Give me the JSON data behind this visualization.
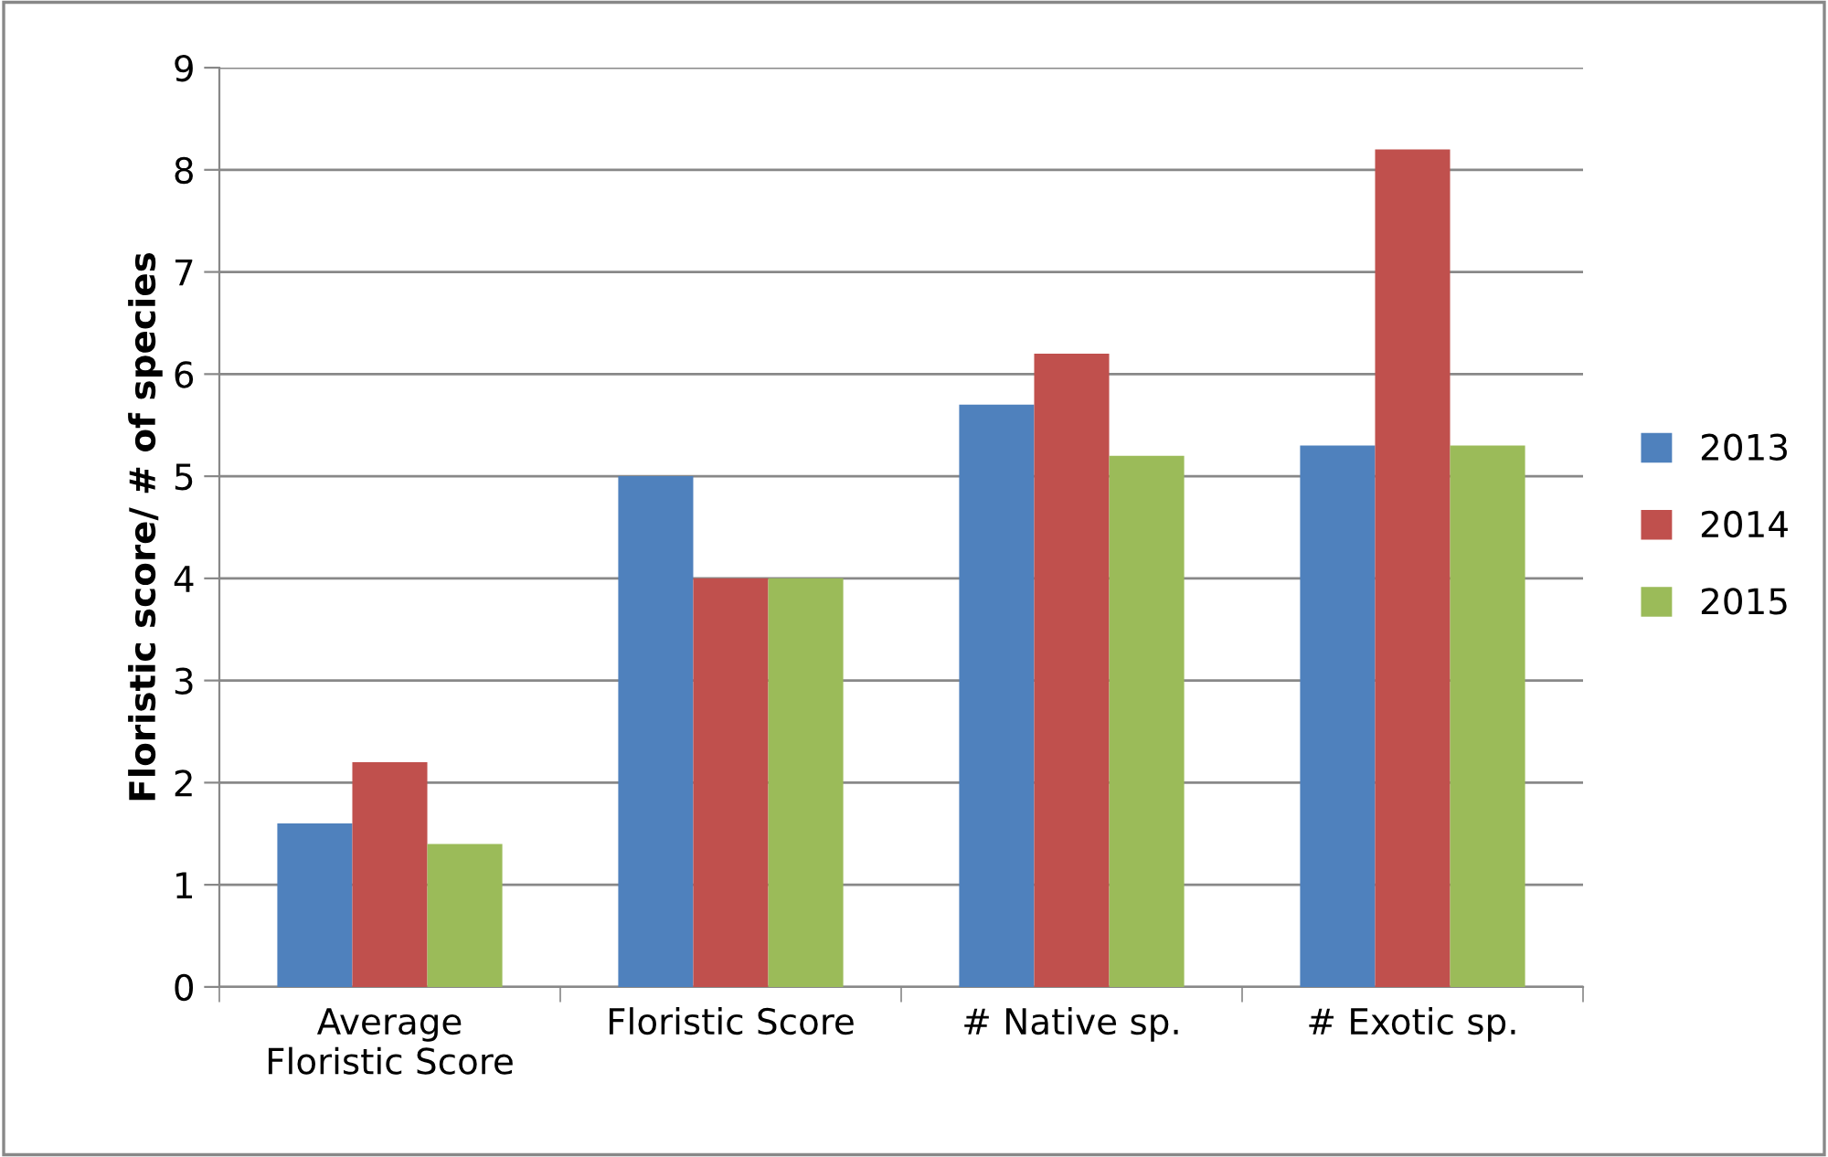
{
  "chart_data": {
    "type": "bar",
    "ylabel": "Floristic score/ # of species",
    "categories": [
      "Average Floristic Score",
      "Floristic Score",
      "# Native sp.",
      "# Exotic sp."
    ],
    "series": [
      {
        "name": "2013",
        "color": "#4f81bd",
        "values": [
          1.6,
          5.0,
          5.7,
          5.3
        ]
      },
      {
        "name": "2014",
        "color": "#c0504d",
        "values": [
          2.2,
          4.0,
          6.2,
          8.2
        ]
      },
      {
        "name": "2015",
        "color": "#9bbb59",
        "values": [
          1.4,
          4.0,
          5.2,
          5.3
        ]
      }
    ],
    "ylim": [
      0,
      9
    ],
    "yticks": [
      0,
      1,
      2,
      3,
      4,
      5,
      6,
      7,
      8,
      9
    ],
    "grid": "y",
    "legend": "right"
  }
}
